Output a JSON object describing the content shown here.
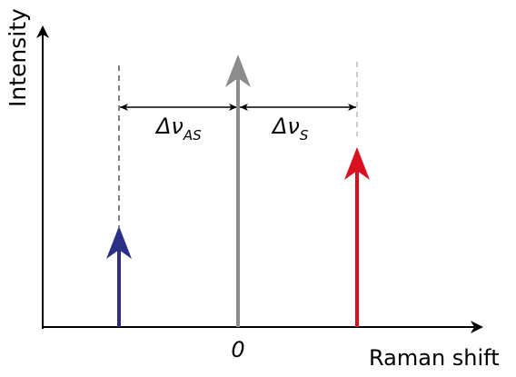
{
  "axes": {
    "y_label": "Intensity",
    "x_label": "Raman shift",
    "origin_label": "0"
  },
  "shifts": {
    "anti_stokes": {
      "symbol": "Δν",
      "subscript": "AS"
    },
    "stokes": {
      "symbol": "Δν",
      "subscript": "S"
    }
  },
  "lines": {
    "anti_stokes": {
      "color": "#2b2f86",
      "relative_intensity": 0.37
    },
    "rayleigh": {
      "color": "#8c8c8c",
      "relative_intensity": 1.0
    },
    "stokes": {
      "color": "#d8101f",
      "relative_intensity": 0.66
    }
  }
}
